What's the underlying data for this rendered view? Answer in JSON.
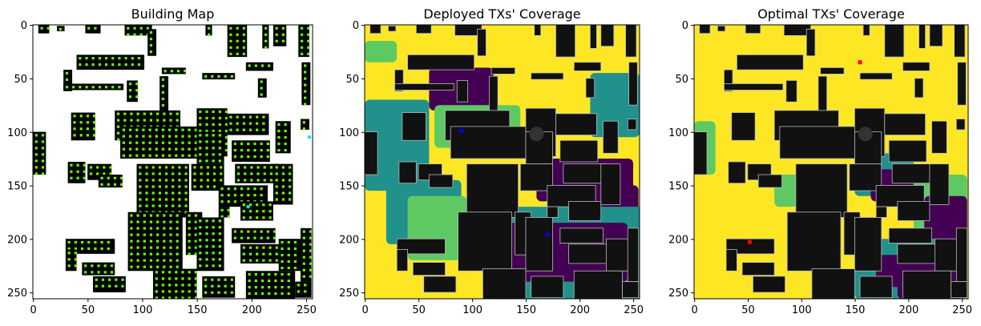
{
  "chart_data": [
    {
      "type": "heatmap",
      "title": "Building Map",
      "xlim": [
        0,
        255
      ],
      "ylim": [
        255,
        0
      ],
      "xticks": [
        0,
        50,
        100,
        150,
        200,
        250
      ],
      "yticks": [
        0,
        50,
        100,
        150,
        200,
        250
      ],
      "colors": {
        "background": "#ffffff",
        "building": "#000000",
        "candidate": "#66ff00",
        "marker": "#00e5ff"
      },
      "markers": [
        {
          "x": 253,
          "y": 105
        },
        {
          "x": 197,
          "y": 170
        }
      ]
    },
    {
      "type": "heatmap",
      "title": "Deployed TXs' Coverage",
      "xlim": [
        0,
        255
      ],
      "ylim": [
        255,
        0
      ],
      "xticks": [
        0,
        50,
        100,
        150,
        200,
        250
      ],
      "yticks": [
        0,
        50,
        100,
        150,
        200,
        250
      ],
      "colors": {
        "high": "#fde725",
        "mid_high": "#5ec962",
        "mid": "#21918c",
        "low": "#440154",
        "building": "#111111",
        "tx": "#0000ff"
      },
      "transmitters": [
        {
          "x": 90,
          "y": 99
        },
        {
          "x": 170,
          "y": 196
        }
      ]
    },
    {
      "type": "heatmap",
      "title": "Optimal TXs' Coverage",
      "xlim": [
        0,
        255
      ],
      "ylim": [
        255,
        0
      ],
      "xticks": [
        0,
        50,
        100,
        150,
        200,
        250
      ],
      "yticks": [
        0,
        50,
        100,
        150,
        200,
        250
      ],
      "colors": {
        "high": "#fde725",
        "mid_high": "#5ec962",
        "mid": "#21918c",
        "low": "#440154",
        "building": "#111111",
        "tx": "#ff0000"
      },
      "transmitters": [
        {
          "x": 155,
          "y": 35
        },
        {
          "x": 52,
          "y": 203
        }
      ]
    }
  ]
}
